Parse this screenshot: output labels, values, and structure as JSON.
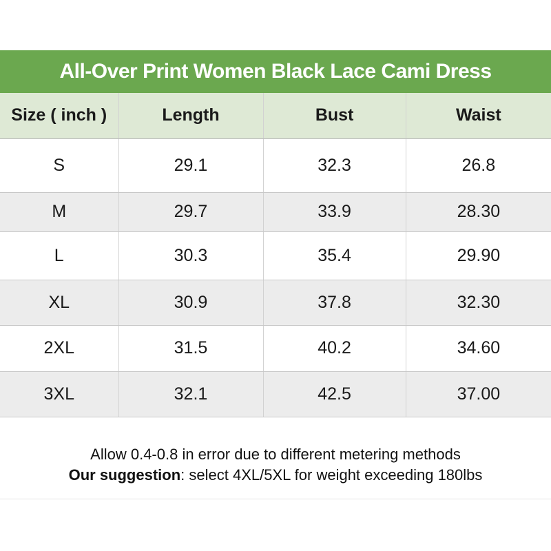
{
  "title": "All-Over Print Women Black Lace Cami Dress",
  "colors": {
    "title_bar_bg": "#6BA84F",
    "title_text": "#FFFFFF",
    "header_row_bg": "#DEE9D5",
    "row_bg": "#FFFFFF",
    "row_alt_bg": "#ECECEC",
    "cell_border": "#C8C8C8",
    "body_text": "#1A1A1A"
  },
  "table": {
    "columns": [
      "Size ( inch )",
      "Length",
      "Bust",
      "Waist"
    ],
    "rows": [
      {
        "size": "S",
        "length": "29.1",
        "bust": "32.3",
        "waist": "26.8"
      },
      {
        "size": "M",
        "length": "29.7",
        "bust": "33.9",
        "waist": "28.30"
      },
      {
        "size": "L",
        "length": "30.3",
        "bust": "35.4",
        "waist": "29.90"
      },
      {
        "size": "XL",
        "length": "30.9",
        "bust": "37.8",
        "waist": "32.30"
      },
      {
        "size": "2XL",
        "length": "31.5",
        "bust": "40.2",
        "waist": "34.60"
      },
      {
        "size": "3XL",
        "length": "32.1",
        "bust": "42.5",
        "waist": "37.00"
      }
    ]
  },
  "footer": {
    "line1": "Allow 0.4-0.8 in error due to different metering methods",
    "line2_bold": "Our suggestion",
    "line2_rest": ": select 4XL/5XL for weight exceeding 180lbs"
  },
  "chart_data": {
    "type": "table",
    "title": "All-Over Print Women Black Lace Cami Dress",
    "unit": "inch",
    "columns": [
      "Size ( inch )",
      "Length",
      "Bust",
      "Waist"
    ],
    "rows": [
      [
        "S",
        29.1,
        32.3,
        26.8
      ],
      [
        "M",
        29.7,
        33.9,
        28.3
      ],
      [
        "L",
        30.3,
        35.4,
        29.9
      ],
      [
        "XL",
        30.9,
        37.8,
        32.3
      ],
      [
        "2XL",
        31.5,
        40.2,
        34.6
      ],
      [
        "3XL",
        32.1,
        42.5,
        37.0
      ]
    ],
    "notes": [
      "Allow 0.4-0.8 in error due to different metering methods",
      "Our suggestion: select 4XL/5XL for weight exceeding 180lbs"
    ]
  }
}
